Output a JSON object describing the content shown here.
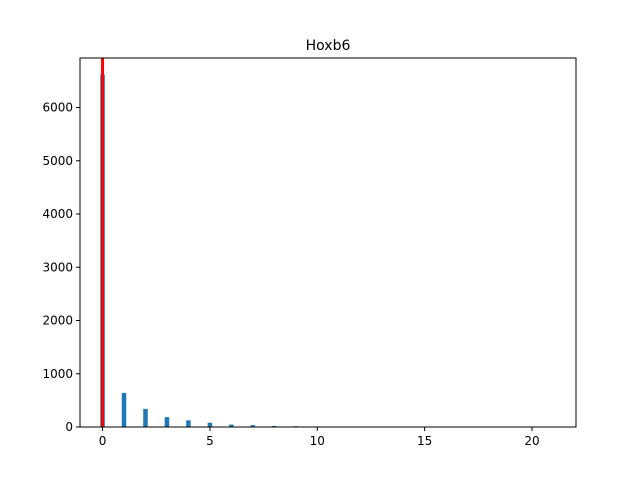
{
  "chart_data": {
    "type": "bar",
    "title": "Hoxb6",
    "xlabel": "",
    "ylabel": "",
    "xlim": [
      -1.05,
      22.05
    ],
    "ylim": [
      0,
      6930
    ],
    "x_ticks": [
      0,
      5,
      10,
      15,
      20
    ],
    "y_ticks": [
      0,
      1000,
      2000,
      3000,
      4000,
      5000,
      6000
    ],
    "grid": false,
    "bar_width": 0.21,
    "series": [
      {
        "x": [
          0,
          1,
          2,
          3,
          4,
          5,
          6,
          7,
          8,
          9,
          10,
          11,
          12,
          13,
          14,
          15,
          16,
          17,
          18,
          19,
          20,
          21
        ],
        "values": [
          6620,
          640,
          340,
          185,
          125,
          80,
          45,
          35,
          20,
          15,
          10,
          8,
          5,
          4,
          3,
          2,
          2,
          1,
          1,
          1,
          1,
          1
        ],
        "color": "#1f77b4"
      }
    ],
    "reference_line": {
      "x": 0,
      "color": "#ff0000"
    }
  }
}
